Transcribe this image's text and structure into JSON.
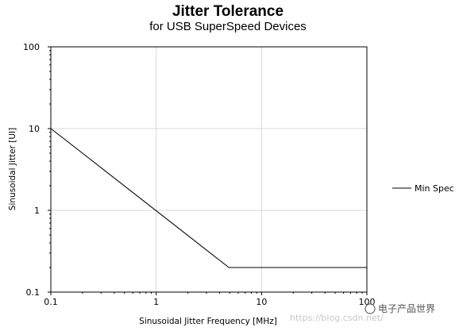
{
  "chart_data": {
    "type": "line",
    "title": "Jitter Tolerance",
    "subtitle": "for USB SuperSpeed Devices",
    "xlabel": "Sinusoidal Jitter Frequency [MHz]",
    "ylabel": "Sinusoidal Jitter [UI]",
    "x_scale": "log",
    "y_scale": "log",
    "xlim": [
      0.1,
      100
    ],
    "ylim": [
      0.1,
      100
    ],
    "x_ticks": [
      "0.1",
      "1",
      "10",
      "100"
    ],
    "y_ticks": [
      "0.1",
      "1",
      "10",
      "100"
    ],
    "grid": true,
    "legend_position": "right",
    "series": [
      {
        "name": "Min Spec",
        "color": "#000000",
        "x": [
          0.1,
          0.2,
          4.9,
          100
        ],
        "y": [
          10,
          5,
          0.2,
          0.2
        ]
      }
    ]
  },
  "watermark": {
    "url": "https://blog.csdn.net/",
    "brand": "电子产品世界"
  }
}
